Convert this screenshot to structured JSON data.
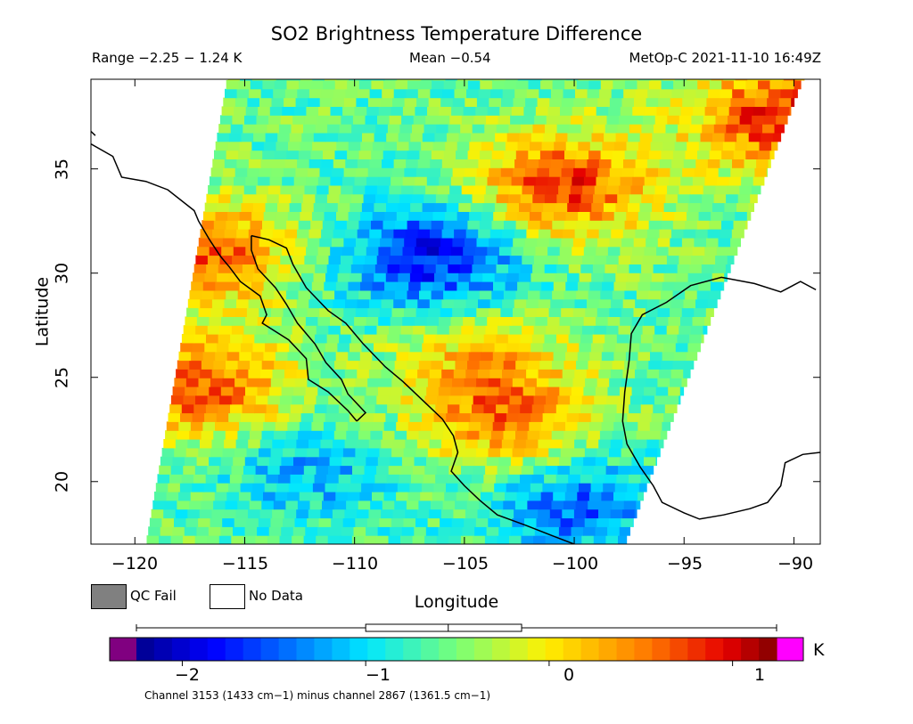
{
  "header": {
    "title": "SO2 Brightness Temperature Difference",
    "range_text": "Range −2.25 − 1.24 K",
    "mean_text": "Mean −0.54",
    "satellite_text": "MetOp-C 2021-11-10 16:49Z"
  },
  "map": {
    "lon_range": [
      -122,
      -88.8
    ],
    "lat_range": [
      17,
      39.3
    ],
    "x_ticks": [
      "−120",
      "−115",
      "−110",
      "−105",
      "−100",
      "−95",
      "−90"
    ],
    "y_ticks": [
      "35",
      "30",
      "25",
      "20"
    ],
    "x_tick_values": [
      -120,
      -115,
      -110,
      -105,
      -100,
      -95,
      -90
    ],
    "y_tick_values": [
      35,
      30,
      25,
      20
    ],
    "xlabel": "Longitude",
    "ylabel": "Latitude"
  },
  "legend": {
    "qc_fail": "QC Fail",
    "no_data": "No Data",
    "qc_fail_color": "#808080",
    "no_data_color": "#ffffff"
  },
  "colorbar": {
    "unit": "K",
    "ticks": [
      "−2",
      "−1",
      "0",
      "1"
    ],
    "tick_values": [
      -2,
      -1,
      0,
      1
    ],
    "range": [
      -2.25,
      1.24
    ],
    "under_color": "#800080",
    "over_color": "#ff00ff",
    "stat_box": {
      "q1": -1.0,
      "median": -0.55,
      "q3": -0.15,
      "min": -2.25,
      "max": 1.24
    }
  },
  "footer": "Channel 3153 (1433 cm−1) minus channel 2867 (1361.5 cm−1)",
  "chart_data": {
    "type": "heatmap",
    "title": "SO2 Brightness Temperature Difference",
    "xlabel": "Longitude",
    "ylabel": "Latitude",
    "xlim": [
      -122,
      -88.8
    ],
    "ylim": [
      17,
      39.3
    ],
    "value_range": [
      -2.25,
      1.24
    ],
    "mean": -0.54,
    "unit": "K",
    "swath_corners": [
      [
        -119.5,
        17
      ],
      [
        -97.7,
        17
      ],
      [
        -89.6,
        39.3
      ],
      [
        -115.8,
        39.3
      ]
    ],
    "features": [
      {
        "value": -1.8,
        "lon": -106.5,
        "lat": 30.8
      },
      {
        "value": 0.8,
        "lon": -100.5,
        "lat": 34.2
      },
      {
        "value": 0.7,
        "lon": -117,
        "lat": 24.5
      },
      {
        "value": 0.6,
        "lon": -116.5,
        "lat": 31
      },
      {
        "value": 0.9,
        "lon": -90.5,
        "lat": 37.5
      },
      {
        "value": -1.5,
        "lon": -100,
        "lat": 19
      },
      {
        "value": -1.2,
        "lon": -112,
        "lat": 20.5
      },
      {
        "value": 0.3,
        "lon": -103,
        "lat": 22.5
      },
      {
        "value": 0.2,
        "lon": -104,
        "lat": 25.5
      }
    ]
  }
}
